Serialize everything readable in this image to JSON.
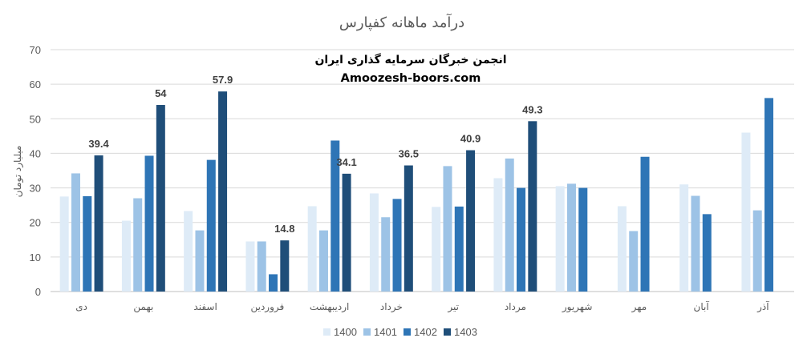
{
  "chart_data": {
    "type": "bar",
    "title": "درآمد ماهانه کفپارس",
    "ylabel": "میلیارد تومان",
    "xlabel": "",
    "ylim": [
      0,
      70
    ],
    "yticks": [
      0,
      10,
      20,
      30,
      40,
      50,
      60,
      70
    ],
    "grid": true,
    "legend_position": "bottom",
    "categories": [
      "دی",
      "بهمن",
      "اسفند",
      "فروردین",
      "اردیبهشت",
      "خرداد",
      "تیر",
      "مرداد",
      "شهریور",
      "مهر",
      "آبان",
      "آذر"
    ],
    "series": [
      {
        "name": "1400",
        "color": "#deebf7",
        "values": [
          27.5,
          20.5,
          23.3,
          14.5,
          24.7,
          28.4,
          24.5,
          32.8,
          30.5,
          24.7,
          31.0,
          46.0
        ]
      },
      {
        "name": "1401",
        "color": "#9dc3e6",
        "values": [
          34.2,
          27.0,
          17.7,
          14.5,
          17.7,
          21.5,
          36.3,
          38.5,
          31.2,
          17.5,
          27.7,
          23.5
        ]
      },
      {
        "name": "1402",
        "color": "#2e75b6",
        "values": [
          27.6,
          39.3,
          38.1,
          5.0,
          43.7,
          26.8,
          24.6,
          30.0,
          30.0,
          39.0,
          22.4,
          56.0
        ]
      },
      {
        "name": "1403",
        "color": "#1f4e79",
        "values": [
          39.4,
          54.0,
          57.9,
          14.8,
          34.1,
          36.5,
          40.9,
          49.3,
          null,
          null,
          null,
          null
        ]
      }
    ],
    "data_labels": [
      "39.4",
      "54",
      "57.9",
      "14.8",
      "34.1",
      "36.5",
      "40.9",
      "49.3"
    ]
  },
  "watermark": {
    "line1": "انجمن خبرگان سرمایه گذاری ایران",
    "line2": "Amoozesh-boors.com"
  }
}
